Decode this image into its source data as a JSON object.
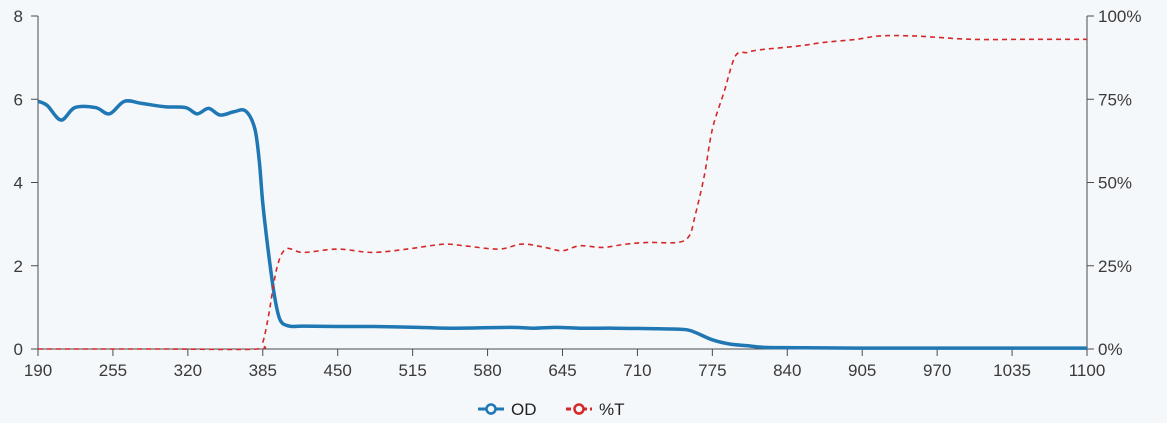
{
  "chart_data": {
    "type": "line",
    "title": "",
    "xlabel": "",
    "ylabel": "",
    "y2label": "",
    "xlim": [
      190,
      1100
    ],
    "ylim": [
      0,
      8
    ],
    "y2lim": [
      0,
      100
    ],
    "x_ticks": [
      190,
      255,
      320,
      385,
      450,
      515,
      580,
      645,
      710,
      775,
      840,
      905,
      970,
      1035,
      1100
    ],
    "y_ticks": [
      0,
      2,
      4,
      6,
      8
    ],
    "y2_ticks": [
      "0%",
      "25%",
      "50%",
      "75%",
      "100%"
    ],
    "y2_tick_values": [
      0,
      25,
      50,
      75,
      100
    ],
    "grid": false,
    "legend_position": "bottom-center",
    "series": [
      {
        "name": "OD",
        "axis": "left",
        "color": "#1f77b4",
        "style": "solid",
        "x": [
          190,
          198,
          210,
          222,
          240,
          252,
          265,
          280,
          300,
          318,
          328,
          338,
          348,
          360,
          370,
          378,
          382,
          385,
          390,
          395,
          400,
          408,
          420,
          450,
          480,
          520,
          550,
          600,
          620,
          640,
          660,
          690,
          720,
          750,
          760,
          775,
          790,
          805,
          820,
          850,
          900,
          1000,
          1100
        ],
        "y": [
          5.95,
          5.85,
          5.5,
          5.8,
          5.8,
          5.65,
          5.95,
          5.9,
          5.82,
          5.8,
          5.65,
          5.78,
          5.62,
          5.7,
          5.72,
          5.3,
          4.5,
          3.5,
          2.3,
          1.3,
          0.7,
          0.55,
          0.55,
          0.54,
          0.54,
          0.52,
          0.5,
          0.52,
          0.5,
          0.52,
          0.5,
          0.5,
          0.49,
          0.47,
          0.4,
          0.22,
          0.12,
          0.08,
          0.04,
          0.03,
          0.02,
          0.02,
          0.02
        ]
      },
      {
        "name": "%T",
        "axis": "right",
        "color": "#d62728",
        "style": "dashed",
        "x": [
          190,
          300,
          380,
          385,
          390,
          397,
          405,
          420,
          450,
          480,
          510,
          530,
          545,
          560,
          590,
          610,
          630,
          645,
          660,
          680,
          700,
          720,
          745,
          755,
          760,
          768,
          775,
          785,
          795,
          805,
          810,
          820,
          850,
          870,
          900,
          920,
          950,
          1000,
          1050,
          1100
        ],
        "y": [
          0,
          0,
          0,
          2,
          10,
          24,
          30,
          29,
          30,
          29,
          30,
          31,
          31.5,
          31,
          30,
          31.5,
          30.5,
          29.5,
          31,
          30.5,
          31.5,
          32,
          32,
          34,
          40,
          52,
          66,
          77,
          88,
          89,
          89.5,
          90,
          91,
          92,
          93,
          94,
          94,
          93,
          93,
          93
        ]
      }
    ]
  }
}
